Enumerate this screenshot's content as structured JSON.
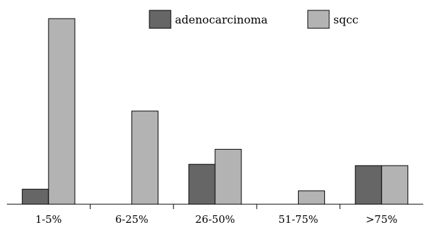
{
  "chart_data": {
    "type": "bar",
    "title": "",
    "xlabel": "",
    "ylabel": "",
    "categories": [
      "1-5%",
      "6-25%",
      "26-50%",
      "51-75%",
      ">75%"
    ],
    "ylim": [
      0,
      100
    ],
    "grid": false,
    "legend_position": "top-right",
    "series": [
      {
        "name": "adenocarcinoma",
        "color": "#666666",
        "values": [
          8.1,
          0,
          21.5,
          0,
          20.8
        ]
      },
      {
        "name": "sqcc",
        "color": "#b3b3b3",
        "values": [
          100,
          50.2,
          29.6,
          7.2,
          20.8
        ]
      }
    ]
  }
}
